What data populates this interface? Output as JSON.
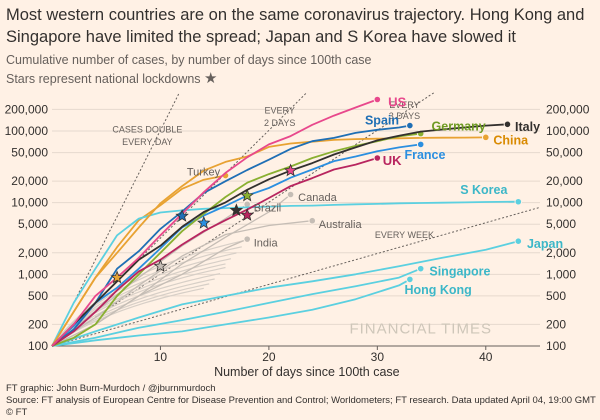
{
  "header": {
    "title": "Most western countries are on the same coronavirus trajectory. Hong Kong and Singapore have limited the spread; Japan and S Korea have slowed it",
    "subtitle": "Cumulative number of cases, by number of days since 100th case",
    "stars_note": "Stars represent national lockdowns",
    "star_symbol": "★"
  },
  "footer": {
    "credit": "FT graphic: John Burn-Murdoch / @jburnmurdoch",
    "source": "Source: FT analysis of European Centre for Disease Prevention and Control; Worldometers; FT research. Data updated April 04, 19:00 GMT",
    "copyright": "© FT"
  },
  "watermark": "FINANCIAL TIMES",
  "colors": {
    "background": "#fff1e5",
    "grey_line": "#c5bdb5",
    "reference": "#66605c",
    "star_fill": "#8f8d8a"
  },
  "chart_data": {
    "type": "line",
    "title": "Cumulative number of cases, by number of days since 100th case",
    "xlabel": "Number of days since 100th case",
    "ylabel": "",
    "xlim": [
      0,
      45
    ],
    "ylim": [
      100,
      350000
    ],
    "yscale": "log",
    "x_ticks": [
      10,
      20,
      30,
      40
    ],
    "x_tick_labels": [
      "10",
      "20",
      "30",
      "40"
    ],
    "y_ticks": [
      100,
      200,
      500,
      1000,
      2000,
      5000,
      10000,
      20000,
      50000,
      100000,
      200000
    ],
    "y_tick_labels": [
      "100",
      "200",
      "500",
      "1,000",
      "2,000",
      "5,000",
      "10,000",
      "20,000",
      "50,000",
      "100,000",
      "200,000"
    ],
    "reference_lines": [
      {
        "label": "CASES DOUBLE",
        "label2": "EVERY DAY",
        "doubling_days": 1
      },
      {
        "label": "EVERY",
        "label2": "2 DAYS",
        "doubling_days": 2
      },
      {
        "label": "EVERY",
        "label2": "3 DAYS",
        "doubling_days": 3
      },
      {
        "label": "EVERY WEEK",
        "label2": "",
        "doubling_days": 7
      }
    ],
    "series": [
      {
        "name": "US",
        "color": "#e8488c",
        "label_color": "#e8488c",
        "x": [
          0,
          2,
          4,
          6,
          8,
          10,
          12,
          14,
          16,
          18,
          20,
          22,
          24,
          26,
          28,
          30
        ],
        "y": [
          100,
          200,
          500,
          900,
          1700,
          3500,
          7000,
          14000,
          26000,
          43000,
          65000,
          85000,
          122000,
          164000,
          213000,
          275000
        ]
      },
      {
        "name": "Spain",
        "color": "#1f6fb5",
        "label_color": "#1f6fb5",
        "x": [
          0,
          2,
          4,
          6,
          8,
          10,
          12,
          14,
          16,
          18,
          20,
          22,
          24,
          26,
          28,
          30,
          32,
          33
        ],
        "y": [
          100,
          170,
          400,
          1200,
          2100,
          4300,
          7500,
          13700,
          19900,
          28600,
          39700,
          56200,
          72000,
          80000,
          94000,
          104000,
          112000,
          119000
        ]
      },
      {
        "name": "Germany",
        "color": "#8ab031",
        "label_color": "#6e9a22",
        "x": [
          0,
          2,
          4,
          6,
          8,
          10,
          12,
          14,
          16,
          18,
          20,
          22,
          24,
          26,
          28,
          30,
          32,
          34
        ],
        "y": [
          100,
          130,
          200,
          500,
          1000,
          2000,
          4000,
          7000,
          12000,
          19000,
          25000,
          32000,
          42000,
          52000,
          62000,
          72000,
          84000,
          92000
        ]
      },
      {
        "name": "Italy",
        "color": "#33302e",
        "label_color": "#33302e",
        "x": [
          0,
          2,
          4,
          6,
          8,
          10,
          12,
          14,
          16,
          18,
          20,
          22,
          24,
          26,
          28,
          30,
          32,
          34,
          36,
          38,
          40,
          42
        ],
        "y": [
          100,
          200,
          400,
          800,
          1600,
          2500,
          4600,
          7400,
          10100,
          15100,
          21200,
          28000,
          35700,
          47000,
          59000,
          74000,
          86000,
          98000,
          105000,
          112000,
          119000,
          124000
        ]
      },
      {
        "name": "China",
        "color": "#e8a232",
        "label_color": "#d98a00",
        "x": [
          0,
          2,
          4,
          6,
          8,
          10,
          12,
          14,
          16,
          18,
          20,
          22,
          24,
          26,
          28,
          30,
          32,
          34,
          36,
          38,
          40
        ],
        "y": [
          100,
          300,
          900,
          2000,
          4500,
          9800,
          17000,
          28000,
          37000,
          44000,
          60000,
          67000,
          71000,
          75000,
          77000,
          78000,
          79000,
          80000,
          80500,
          81000,
          81500
        ]
      },
      {
        "name": "France",
        "color": "#2b8fe0",
        "label_color": "#2b8fe0",
        "x": [
          0,
          2,
          4,
          6,
          8,
          10,
          12,
          14,
          16,
          18,
          20,
          22,
          24,
          26,
          28,
          30,
          32,
          34
        ],
        "y": [
          100,
          190,
          400,
          650,
          1200,
          2300,
          4500,
          6600,
          9000,
          12600,
          16000,
          22300,
          29000,
          38000,
          44000,
          52000,
          59000,
          65000
        ]
      },
      {
        "name": "UK",
        "color": "#b8255f",
        "label_color": "#b8255f",
        "x": [
          0,
          2,
          4,
          6,
          8,
          10,
          12,
          14,
          16,
          18,
          20,
          22,
          24,
          26,
          28,
          30
        ],
        "y": [
          100,
          160,
          300,
          600,
          1100,
          1600,
          2600,
          4000,
          5700,
          8000,
          11600,
          17000,
          22000,
          29000,
          34000,
          42000
        ]
      },
      {
        "name": "S Korea",
        "color": "#5bd0e0",
        "label_color": "#3cb7c8",
        "x": [
          0,
          2,
          4,
          6,
          8,
          10,
          12,
          14,
          16,
          18,
          20,
          22,
          24,
          26,
          28,
          30,
          32,
          34,
          36,
          38,
          40,
          43
        ],
        "y": [
          100,
          400,
          1200,
          3500,
          6000,
          7300,
          7800,
          8200,
          8400,
          8600,
          8800,
          9000,
          9100,
          9300,
          9500,
          9600,
          9800,
          9900,
          10000,
          10100,
          10200,
          10300
        ]
      },
      {
        "name": "Japan",
        "color": "#5bd0e0",
        "label_color": "#3cb7c8",
        "x": [
          0,
          4,
          8,
          12,
          16,
          20,
          24,
          28,
          32,
          36,
          40,
          43
        ],
        "y": [
          100,
          160,
          250,
          380,
          500,
          650,
          800,
          1000,
          1300,
          1700,
          2200,
          2900
        ]
      },
      {
        "name": "Singapore",
        "color": "#5bd0e0",
        "label_color": "#3cb7c8",
        "x": [
          0,
          4,
          8,
          12,
          16,
          20,
          24,
          28,
          32,
          34
        ],
        "y": [
          100,
          130,
          180,
          230,
          300,
          400,
          530,
          680,
          900,
          1200
        ]
      },
      {
        "name": "Hong Kong",
        "color": "#5bd0e0",
        "label_color": "#3cb7c8",
        "x": [
          0,
          4,
          8,
          12,
          16,
          20,
          24,
          28,
          32,
          33
        ],
        "y": [
          100,
          120,
          140,
          160,
          200,
          250,
          320,
          450,
          700,
          850
        ]
      },
      {
        "name": "Turkey",
        "color": "#e8a232",
        "label_color": "#66605c",
        "x": [
          0,
          2,
          4,
          6,
          8,
          10,
          12,
          14,
          16
        ],
        "y": [
          100,
          300,
          900,
          2400,
          5700,
          9200,
          15600,
          20900,
          23900
        ]
      },
      {
        "name": "Canada",
        "color": "#c5bdb5",
        "label_color": "#66605c",
        "x": [
          0,
          4,
          8,
          12,
          16,
          20,
          22
        ],
        "y": [
          100,
          200,
          500,
          1400,
          3300,
          7400,
          13000
        ]
      },
      {
        "name": "Brazil",
        "color": "#c5bdb5",
        "label_color": "#66605c",
        "x": [
          0,
          4,
          8,
          12,
          16,
          18
        ],
        "y": [
          100,
          300,
          900,
          2500,
          6000,
          9500
        ]
      },
      {
        "name": "Australia",
        "color": "#c5bdb5",
        "label_color": "#66605c",
        "x": [
          0,
          4,
          8,
          12,
          16,
          20,
          24
        ],
        "y": [
          100,
          250,
          700,
          1800,
          3600,
          4800,
          5600
        ]
      },
      {
        "name": "India",
        "color": "#c5bdb5",
        "label_color": "#66605c",
        "x": [
          0,
          4,
          8,
          12,
          16,
          18
        ],
        "y": [
          100,
          200,
          500,
          1000,
          2300,
          3100
        ]
      }
    ],
    "lockdowns": [
      {
        "country": "China",
        "x": 6,
        "y": 900
      },
      {
        "country": "Spain",
        "x": 12,
        "y": 6500
      },
      {
        "country": "France",
        "x": 14,
        "y": 5200
      },
      {
        "country": "Germany",
        "x": 18,
        "y": 12500
      },
      {
        "country": "Italy",
        "x": 17,
        "y": 7800
      },
      {
        "country": "UK",
        "x": 18,
        "y": 6700
      },
      {
        "country": "US",
        "x": 22,
        "y": 28000
      },
      {
        "country": "India",
        "x": 10,
        "y": 1300
      }
    ]
  }
}
